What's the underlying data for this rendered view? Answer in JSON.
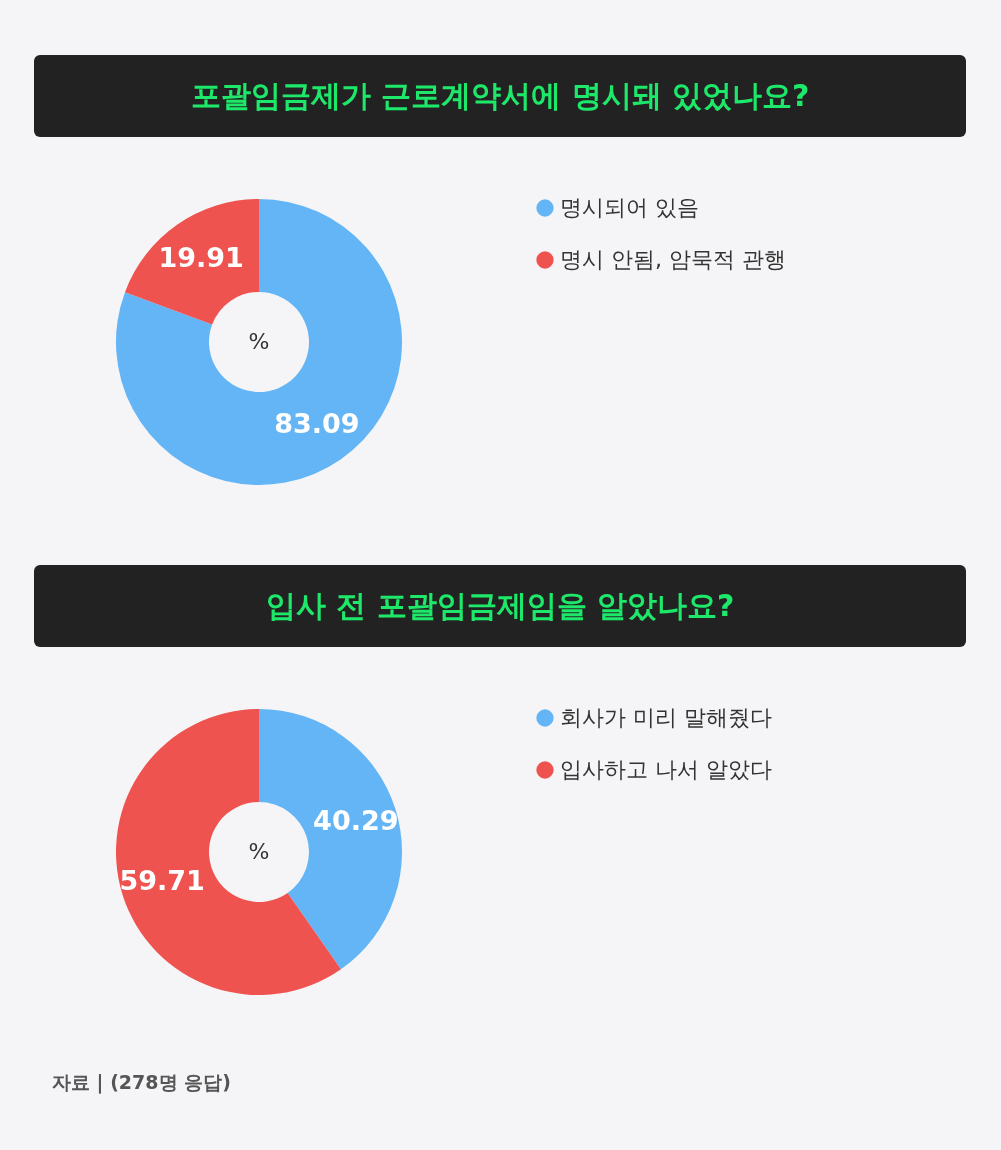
{
  "chart_data": [
    {
      "type": "donut",
      "title": "포괄임금제가 근로계약서에 명시돼 있었나요?",
      "categories": [
        "명시되어 있음",
        "명시 안됨, 암묵적 관행"
      ],
      "values": [
        83.09,
        19.91
      ],
      "colors": [
        "#64b5f6",
        "#ef5350"
      ],
      "data_labels": true,
      "legend": "right",
      "annotations": [
        "%"
      ]
    },
    {
      "type": "donut",
      "title": "입사 전 포괄임금제임을 알았나요?",
      "categories": [
        "회사가 미리 말해줬다",
        "입사하고 나서 알았다"
      ],
      "values": [
        40.29,
        59.71
      ],
      "colors": [
        "#64b5f6",
        "#ef5350"
      ],
      "data_labels": true,
      "legend": "right",
      "annotations": [
        "%",
        "자료 | (278명 응답)"
      ]
    }
  ]
}
